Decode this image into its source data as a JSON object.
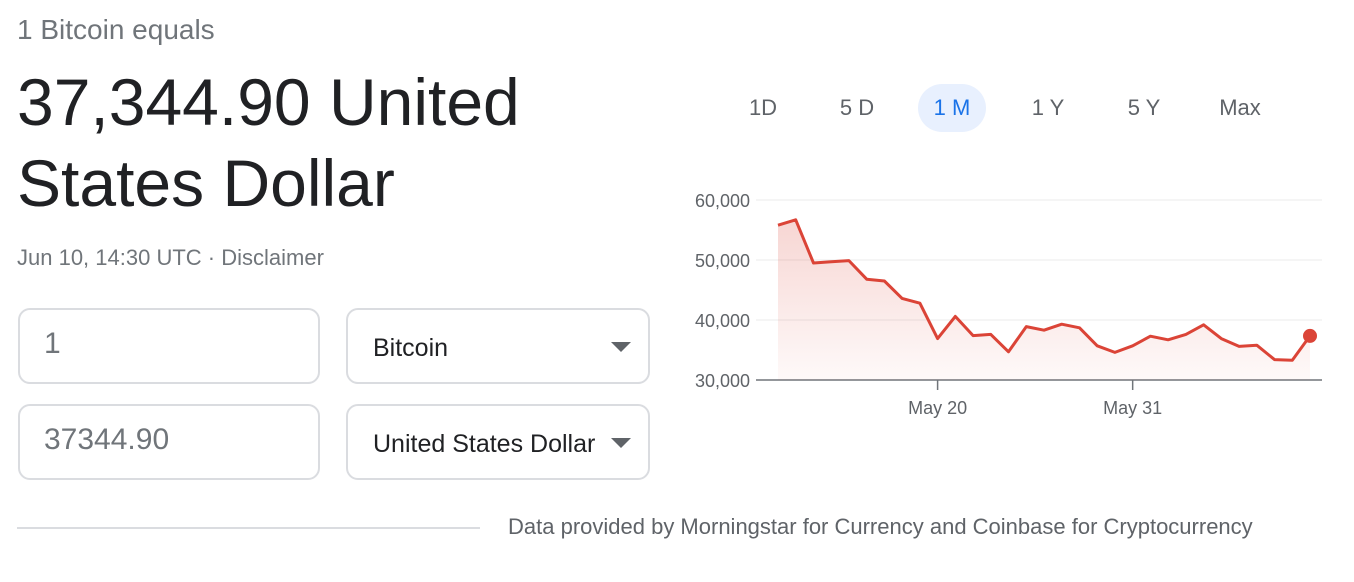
{
  "header": {
    "subtitle": "1 Bitcoin equals",
    "value": "37,344.90 United States Dollar",
    "timestamp": "Jun 10, 14:30 UTC",
    "separator": "·",
    "disclaimer": "Disclaimer"
  },
  "converter": {
    "from_amount": "1",
    "from_currency": "Bitcoin",
    "to_amount": "37344.90",
    "to_currency": "United States Dollar"
  },
  "ranges": {
    "items": [
      "1D",
      "5 D",
      "1 M",
      "1 Y",
      "5 Y",
      "Max"
    ],
    "active": "1 M"
  },
  "footer": "Data provided by Morningstar for Currency and Coinbase for Cryptocurrency",
  "colors": {
    "line": "#db4437",
    "active_tab_bg": "#e8f0fe",
    "active_tab_text": "#1a73e8"
  },
  "chart_data": {
    "type": "area",
    "x": [
      "May 11",
      "May 12",
      "May 13",
      "May 14",
      "May 15",
      "May 16",
      "May 17",
      "May 18",
      "May 19",
      "May 20",
      "May 21",
      "May 22",
      "May 23",
      "May 24",
      "May 25",
      "May 26",
      "May 27",
      "May 28",
      "May 29",
      "May 30",
      "May 31",
      "Jun 1",
      "Jun 2",
      "Jun 3",
      "Jun 4",
      "Jun 5",
      "Jun 6",
      "Jun 7",
      "Jun 8",
      "Jun 9",
      "Jun 10"
    ],
    "values": [
      55800,
      56700,
      49500,
      49700,
      49900,
      46800,
      46500,
      43600,
      42800,
      36900,
      40600,
      37400,
      37600,
      34700,
      38900,
      38300,
      39300,
      38700,
      35700,
      34600,
      35700,
      37300,
      36700,
      37600,
      39200,
      36900,
      35600,
      35800,
      33400,
      33300,
      37345
    ],
    "ylim": [
      30000,
      60000
    ],
    "yticks": [
      "60,000",
      "50,000",
      "40,000",
      "30,000"
    ],
    "xticks": [
      "May 20",
      "May 31"
    ],
    "grid": true
  }
}
